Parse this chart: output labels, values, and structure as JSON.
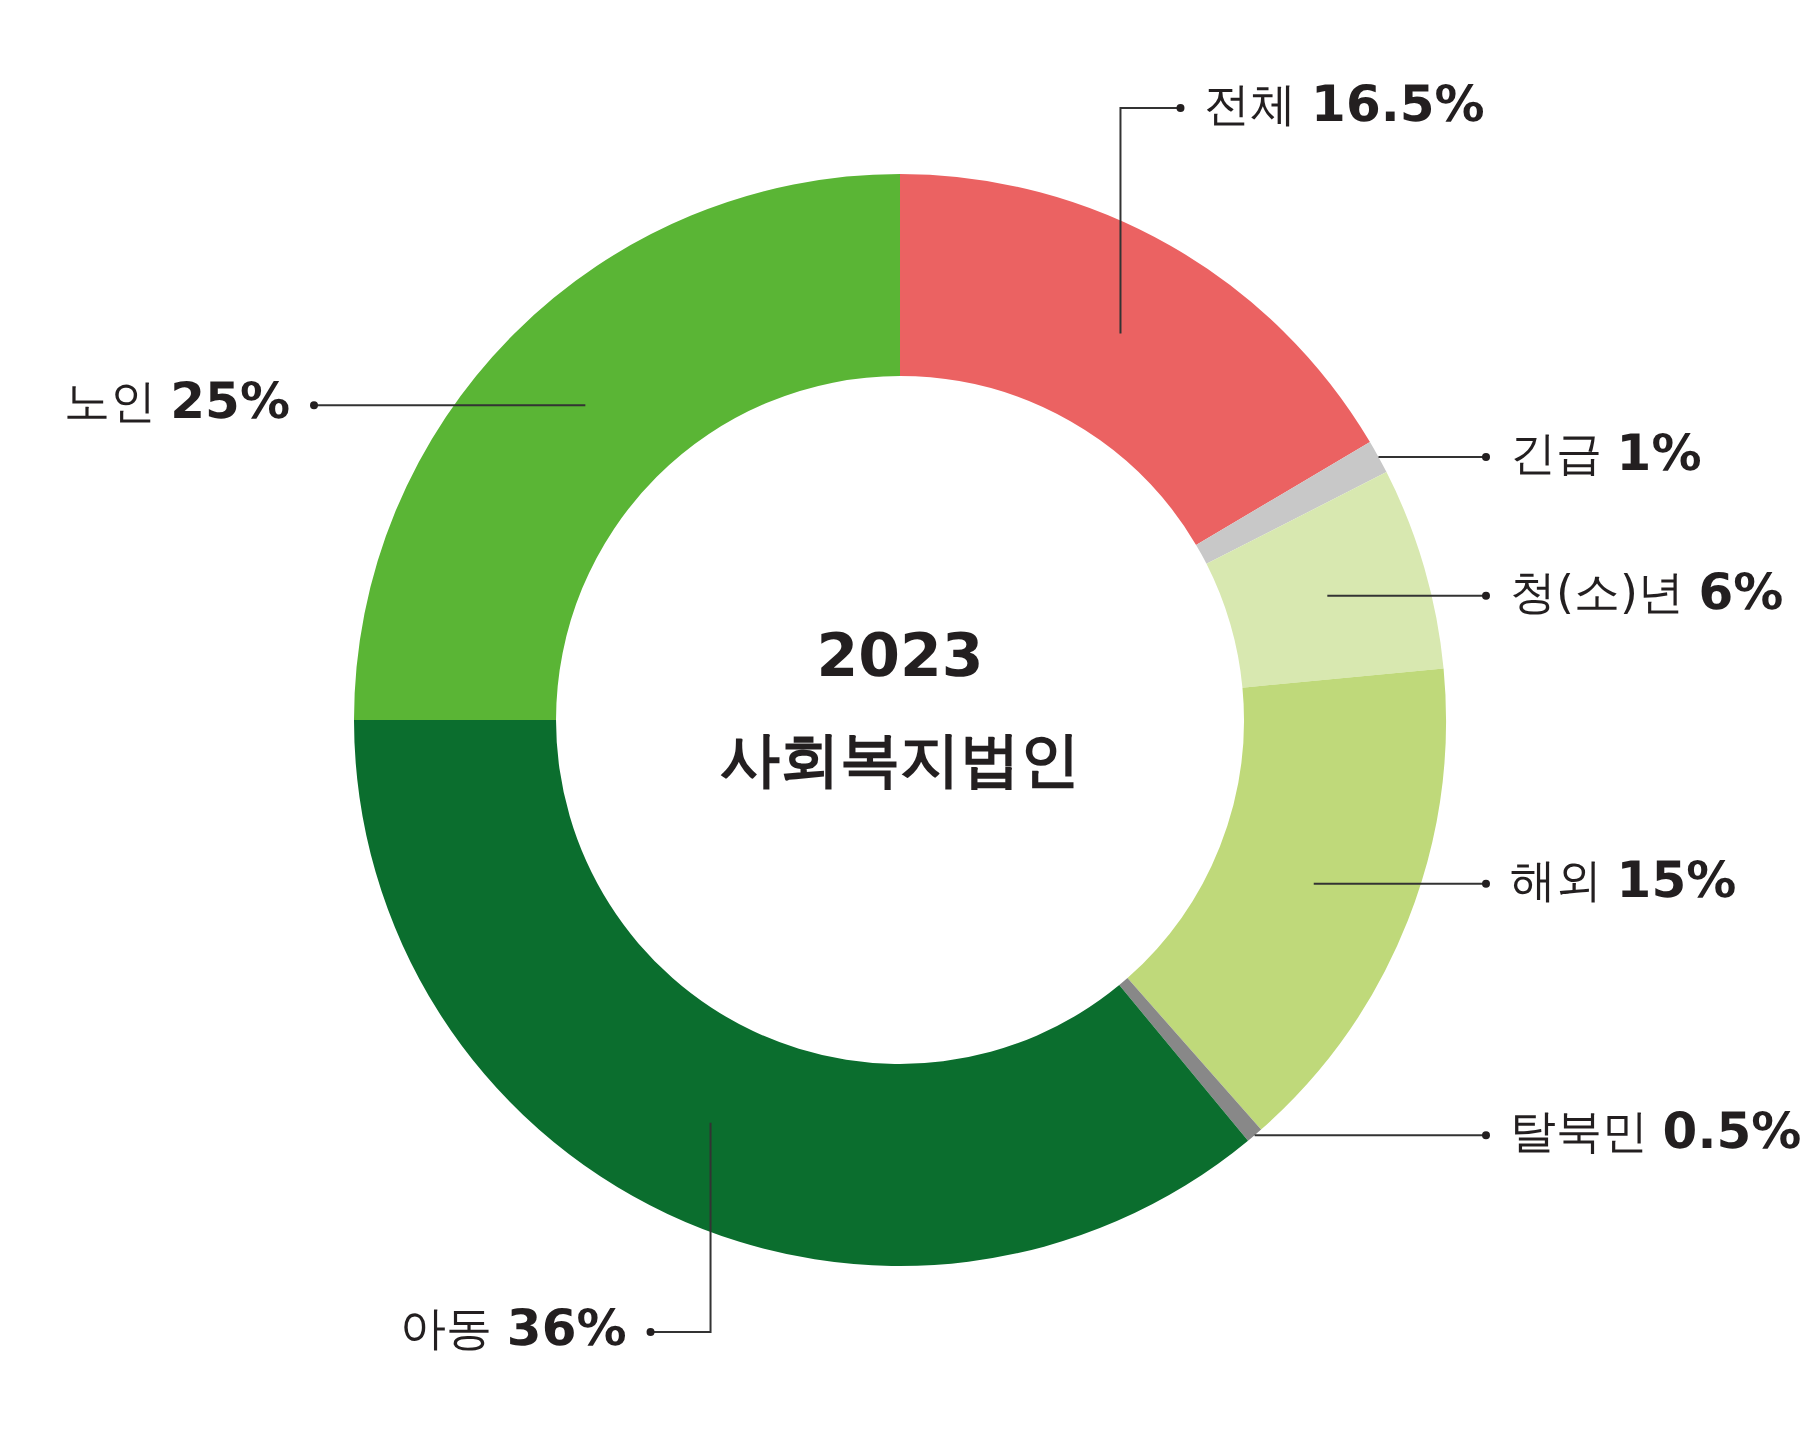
{
  "chart_data": {
    "type": "donut",
    "title": "2023",
    "subtitle": "사회복지법인",
    "categories": [
      "전체",
      "긴급",
      "청(소)년",
      "해외",
      "탈북민",
      "아동",
      "노인"
    ],
    "values": [
      16.5,
      1,
      6,
      15,
      0.5,
      36,
      25
    ],
    "colors": [
      "#eb6262",
      "#c8c8c8",
      "#d8e8b0",
      "#bfd97a",
      "#888888",
      "#0b6e2e",
      "#5ab535"
    ],
    "value_labels": [
      "16.5%",
      "1%",
      "6%",
      "15%",
      "0.5%",
      "36%",
      "25%"
    ]
  }
}
